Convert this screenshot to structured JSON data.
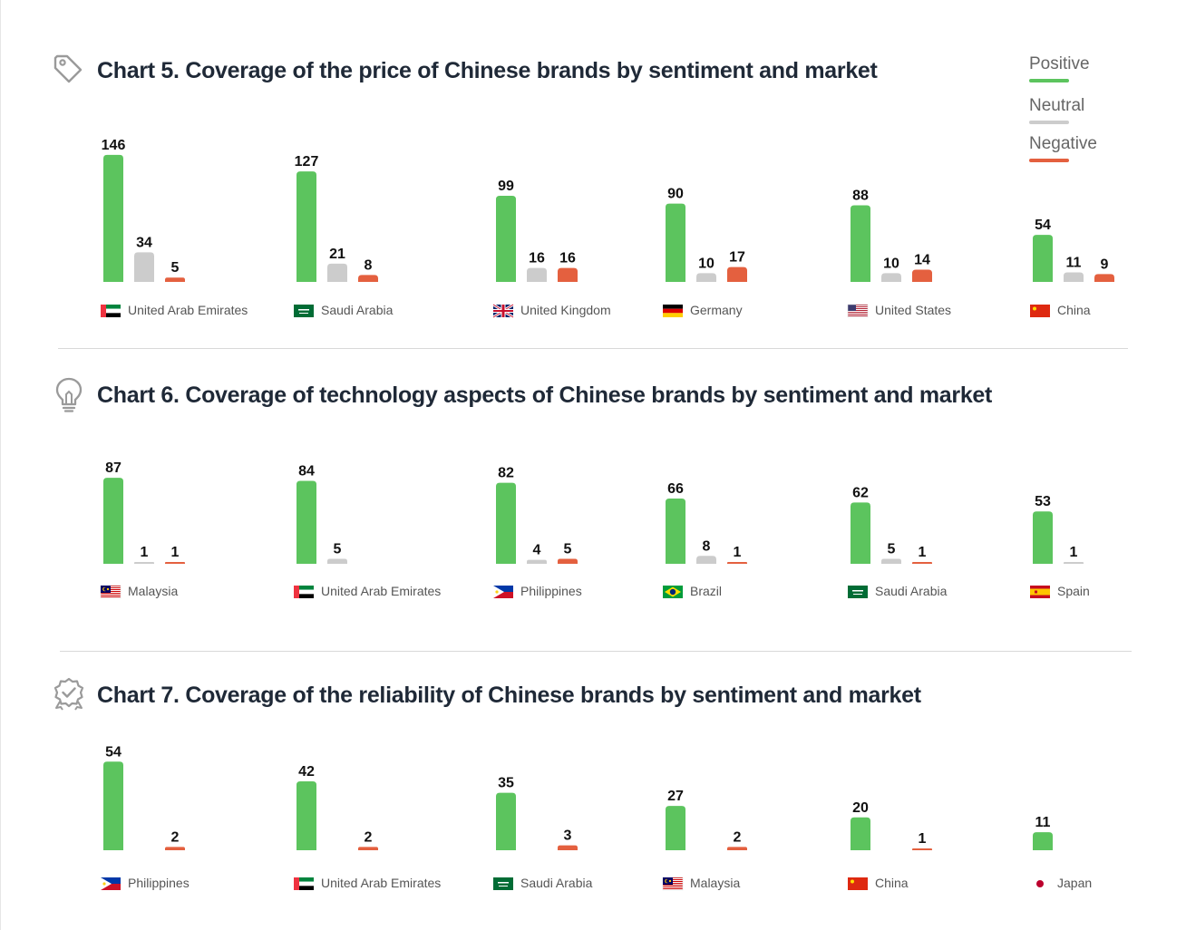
{
  "legend": [
    {
      "label": "Positive",
      "color": "#5cc45e"
    },
    {
      "label": "Neutral",
      "color": "#cccccc"
    },
    {
      "label": "Negative",
      "color": "#e4603f"
    }
  ],
  "chart_data": [
    {
      "type": "bar",
      "title": "Chart 5. Coverage of the price of Chinese brands by sentiment and market",
      "icon": "price-tag-icon",
      "categories": [
        "United Arab Emirates",
        "Saudi Arabia",
        "United Kingdom",
        "Germany",
        "United States",
        "China"
      ],
      "flags": [
        "uae-flag-icon",
        "saudi-arabia-flag-icon",
        "uk-flag-icon",
        "germany-flag-icon",
        "us-flag-icon",
        "china-flag-icon"
      ],
      "series": [
        {
          "name": "Positive",
          "values": [
            146,
            127,
            99,
            90,
            88,
            54
          ]
        },
        {
          "name": "Neutral",
          "values": [
            34,
            21,
            16,
            10,
            10,
            11
          ]
        },
        {
          "name": "Negative",
          "values": [
            5,
            8,
            16,
            17,
            14,
            9
          ]
        }
      ]
    },
    {
      "type": "bar",
      "title": "Chart 6. Coverage of technology aspects of Chinese brands by sentiment and market",
      "icon": "lightbulb-icon",
      "categories": [
        "Malaysia",
        "United Arab Emirates",
        "Philippines",
        "Brazil",
        "Saudi Arabia",
        "Spain"
      ],
      "flags": [
        "malaysia-flag-icon",
        "uae-flag-icon",
        "philippines-flag-icon",
        "brazil-flag-icon",
        "saudi-arabia-flag-icon",
        "spain-flag-icon"
      ],
      "series": [
        {
          "name": "Positive",
          "values": [
            87,
            84,
            82,
            66,
            62,
            53
          ]
        },
        {
          "name": "Neutral",
          "values": [
            1,
            5,
            4,
            8,
            5,
            1
          ]
        },
        {
          "name": "Negative",
          "values": [
            1,
            null,
            5,
            1,
            1,
            null
          ]
        }
      ]
    },
    {
      "type": "bar",
      "title": "Chart 7.  Coverage of the reliability of Chinese brands by sentiment and market",
      "icon": "award-badge-icon",
      "categories": [
        "Philippines",
        "United Arab Emirates",
        "Saudi Arabia",
        "Malaysia",
        "China",
        "Japan"
      ],
      "flags": [
        "philippines-flag-icon",
        "uae-flag-icon",
        "saudi-arabia-flag-icon",
        "malaysia-flag-icon",
        "china-flag-icon",
        "japan-flag-icon"
      ],
      "series": [
        {
          "name": "Positive",
          "values": [
            54,
            42,
            35,
            27,
            20,
            11
          ]
        },
        {
          "name": "Neutral",
          "values": [
            null,
            null,
            null,
            null,
            null,
            null
          ]
        },
        {
          "name": "Negative",
          "values": [
            2,
            2,
            3,
            2,
            1,
            null
          ]
        }
      ]
    }
  ]
}
